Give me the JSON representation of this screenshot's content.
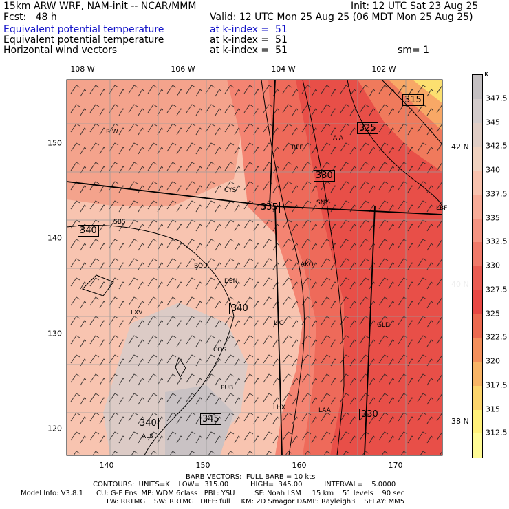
{
  "header": {
    "model": "15km ARW WRF, NAM-init -- NCAR/MMM",
    "init": "Init: 12 UTC Sat 23 Aug 25",
    "fcst": "Fcst:   48 h",
    "valid": "Valid: 12 UTC Mon 25 Aug 25 (06 MDT Mon 25 Aug 25)",
    "rows": [
      {
        "field": "Equivalent potential temperature",
        "level": "at k-index =  51",
        "extra": ""
      },
      {
        "field": "Equivalent potential temperature",
        "level": "at k-index =  51",
        "extra": ""
      },
      {
        "field": "Horizontal wind vectors",
        "level": "at k-index =  51",
        "extra": "sm= 1"
      }
    ]
  },
  "map": {
    "top_ticks": [
      "108 W",
      "106 W",
      "104 W",
      "102 W"
    ],
    "left_ticks": [
      "150",
      "140",
      "130",
      "120"
    ],
    "bottom_ticks": [
      "140",
      "150",
      "160",
      "170"
    ],
    "right_ticks": [
      "42 N",
      "40 N",
      "38 N"
    ],
    "contour_labels": [
      "315",
      "325",
      "330",
      "335",
      "340",
      "340",
      "340",
      "345",
      "330"
    ],
    "stations": [
      "RIW",
      "BFF",
      "AIA",
      "CYS",
      "SNY",
      "SBS",
      "LBF",
      "AKO",
      "BOU",
      "DEN",
      "LXV",
      "LIC",
      "GLD",
      "COS",
      "PUB",
      "LHX",
      "LAA",
      "ALS"
    ],
    "colors": {
      "c315": "#ffef6e",
      "c320": "#fbb06c",
      "c325": "#f77a5e",
      "c330": "#e94b48",
      "c335": "#f48a7a",
      "c338": "#f8a794",
      "c340": "#f8c8b4",
      "c343": "#e8d0c6",
      "c345": "#d9cccb",
      "c348": "#c8c2c4"
    }
  },
  "colorbar": {
    "unit": "K",
    "labels": [
      "347.5",
      "345",
      "342.5",
      "340",
      "337.5",
      "335",
      "332.5",
      "330",
      "327.5",
      "325",
      "322.5",
      "320",
      "317.5",
      "315",
      "312.5"
    ],
    "colors": [
      "#c4c0c2",
      "#d3cccc",
      "#e0cec6",
      "#f0d2c0",
      "#f8c2ae",
      "#f8ac98",
      "#f59482",
      "#f07a6a",
      "#ea5c52",
      "#e84844",
      "#ec6a50",
      "#f4905c",
      "#f8b466",
      "#fcd46c",
      "#fff07a",
      "#fffb96"
    ]
  },
  "footer": {
    "line1": "BARB VECTORS:  FULL BARB = 10 kts",
    "line2": "CONTOURS:  UNITS=K    LOW=  315.00          HIGH=  345.00          INTERVAL=    5.0000",
    "line3": "Model Info: V3.8.1      CU: G-F Ens  MP: WDM 6class   PBL: YSU         SF: Noah LSM     15 km    51 levels    90 sec",
    "line4": "LW: RRTMG    SW: RRTMG   DIFF: full     KM: 2D Smagor DAMP: Rayleigh3    SFLAY: MM5"
  }
}
